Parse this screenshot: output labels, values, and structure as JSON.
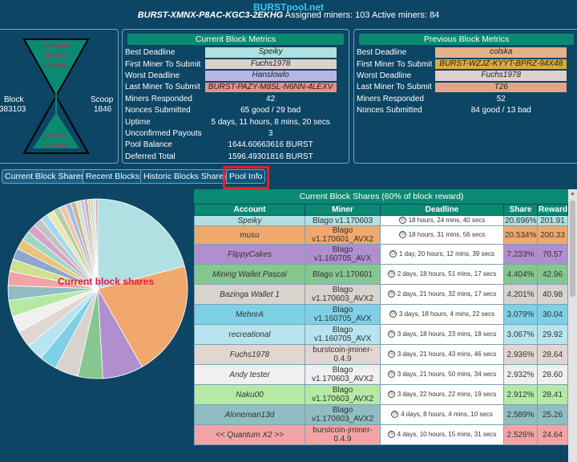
{
  "header": {
    "title": "BURSTpool.net",
    "address": "BURST-XMNX-P8AC-KGC3-2EKHG",
    "assigned_label": "Assigned miners:",
    "assigned_value": "103",
    "active_label": "Active miners:",
    "active_value": "84"
  },
  "hourglass": {
    "top_lines": [
      "18 hours",
      "36 mins",
      "25 secs"
    ],
    "bottom_lines": [
      "8 mins",
      "15 secs"
    ],
    "block_label": "Block",
    "block_value": "383103",
    "scoop_label": "Scoop",
    "scoop_value": "1846"
  },
  "current_metrics": {
    "title": "Current Block Metrics",
    "rows": [
      {
        "key": "Best Deadline",
        "value": "Speiky",
        "color": "#aee0df"
      },
      {
        "key": "First Miner To Submit",
        "value": "Fuchs1978",
        "color": "#ddd0cf"
      },
      {
        "key": "Worst Deadline",
        "value": "Hanslowlo",
        "color": "#b8b6e2"
      },
      {
        "key": "Last Miner To Submit",
        "value": "BURST-PAZY-M8SL-N6NN-4LEXV",
        "color": "#e7908b"
      },
      {
        "key": "Miners Responded",
        "value": "42",
        "color": ""
      },
      {
        "key": "Nonces Submitted",
        "value": "65 good / 29 bad",
        "color": ""
      },
      {
        "key": "Uptime",
        "value": "5 days, 11 hours, 8 mins, 20 secs",
        "color": ""
      },
      {
        "key": "Unconfirmed Payouts",
        "value": "3",
        "color": ""
      },
      {
        "key": "Pool Balance",
        "value": "1644.60663616 BURST",
        "color": ""
      },
      {
        "key": "Deferred Total",
        "value": "1596.49301816 BURST",
        "color": ""
      }
    ]
  },
  "previous_metrics": {
    "title": "Previous Block Metrics",
    "rows": [
      {
        "key": "Best Deadline",
        "value": "colska",
        "color": "#e4b189"
      },
      {
        "key": "First Miner To Submit",
        "value": "BURST-WZJZ-KYYT-BPRZ-94X48",
        "color": "#d9ab3f"
      },
      {
        "key": "Worst Deadline",
        "value": "Fuchs1978",
        "color": "#ddd0cf"
      },
      {
        "key": "Last Miner To Submit",
        "value": "T26",
        "color": "#e3a58a"
      },
      {
        "key": "Miners Responded",
        "value": "52",
        "color": ""
      },
      {
        "key": "Nonces Submitted",
        "value": "84 good / 13 bad",
        "color": ""
      }
    ]
  },
  "tabs": [
    "Current Block Shares",
    "Recent Blocks",
    "Historic Blocks Shares",
    "Pool Info"
  ],
  "pie": {
    "label": "Current block shares",
    "shares": [
      20.696,
      20.534,
      7.233,
      4.404,
      4.201,
      3.079,
      3.067,
      2.936,
      2.932,
      2.912,
      2.589,
      2.526,
      2.2,
      2.0,
      1.8,
      1.7,
      1.6,
      1.5,
      1.4,
      1.3,
      1.2,
      1.1,
      1.0,
      0.9,
      0.8,
      0.7,
      0.6,
      0.5,
      0.5,
      0.4,
      0.4
    ],
    "colors": [
      "#b0e0e2",
      "#f0a86c",
      "#b18fcf",
      "#86c78f",
      "#d9d3cd",
      "#7dd0e6",
      "#b7e4ef",
      "#e2d6d3",
      "#f0f0f0",
      "#b5eaa5",
      "#8fbdc2",
      "#f2a4a4",
      "#cfe08f",
      "#8da8cf",
      "#e9c47a",
      "#9fd6c5",
      "#d7a3c6",
      "#c2c2c2",
      "#a6d7f0",
      "#e8e8b0",
      "#b6cfa8",
      "#f4c6a6",
      "#9ec0e8",
      "#d0b48f",
      "#c8e6c8",
      "#e3b9d6",
      "#a9b9c9",
      "#f0d090",
      "#bfe0bf",
      "#d6d6f0",
      "#c9a9a9"
    ]
  },
  "shares_table": {
    "title": "Current Block Shares (60% of block reward)",
    "columns": [
      "Account",
      "Miner",
      "Deadline",
      "Share",
      "Reward"
    ],
    "rows": [
      {
        "account": "Speiky",
        "miner": "Blago v1.170603",
        "deadline": "18 hours, 24 mins, 40 secs",
        "share": "20.696%",
        "reward": "201.91",
        "color": "#b0e0e2"
      },
      {
        "account": "musu",
        "miner": "Blago v1.170601_AVX2",
        "deadline": "18 hours, 31 mins, 56 secs",
        "share": "20.534%",
        "reward": "200.33",
        "color": "#f0a86c"
      },
      {
        "account": "FlippyCakes",
        "miner": "Blago v1.160705_AVX",
        "deadline": "1 day, 20 hours, 12 mins, 39 secs",
        "share": "7.233%",
        "reward": "70.57",
        "color": "#b18fcf"
      },
      {
        "account": "Mining Wallet Pascal",
        "miner": "Blago v1.170601",
        "deadline": "2 days, 18 hours, 51 mins, 17 secs",
        "share": "4.404%",
        "reward": "42.96",
        "color": "#86c78f"
      },
      {
        "account": "Bazinga Wallet 1",
        "miner": "Blago v1.170603_AVX2",
        "deadline": "2 days, 21 hours, 32 mins, 17 secs",
        "share": "4.201%",
        "reward": "40.98",
        "color": "#d9d3cd"
      },
      {
        "account": "MehnrA",
        "miner": "Blago v1.160705_AVX",
        "deadline": "3 days, 18 hours, 4 mins, 22 secs",
        "share": "3.079%",
        "reward": "30.04",
        "color": "#7dd0e6"
      },
      {
        "account": "recreational",
        "miner": "Blago v1.160705_AVX",
        "deadline": "3 days, 18 hours, 23 mins, 18 secs",
        "share": "3.067%",
        "reward": "29.92",
        "color": "#b7e4ef"
      },
      {
        "account": "Fuchs1978",
        "miner": "burstcoin-jminer-0.4.9",
        "deadline": "3 days, 21 hours, 43 mins, 46 secs",
        "share": "2.936%",
        "reward": "28.64",
        "color": "#e2d6d3"
      },
      {
        "account": "Andy tester",
        "miner": "Blago v1.170603_AVX2",
        "deadline": "3 days, 21 hours, 50 mins, 34 secs",
        "share": "2.932%",
        "reward": "28.60",
        "color": "#f0f0f0"
      },
      {
        "account": "Naku00",
        "miner": "Blago v1.170603_AVX2",
        "deadline": "3 days, 22 hours, 22 mins, 19 secs",
        "share": "2.912%",
        "reward": "28.41",
        "color": "#b5eaa5"
      },
      {
        "account": "Aloneman13d",
        "miner": "Blago v1.170603_AVX2",
        "deadline": "4 days, 8 hours, 4 mins, 10 secs",
        "share": "2.589%",
        "reward": "25.26",
        "color": "#8fbdc2"
      },
      {
        "account": "<< Quantum X2 >>",
        "miner": "burstcoin-jminer-0.4.9",
        "deadline": "4 days, 10 hours, 15 mins, 31 secs",
        "share": "2.526%",
        "reward": "24.64",
        "color": "#f2a4a4"
      }
    ]
  }
}
